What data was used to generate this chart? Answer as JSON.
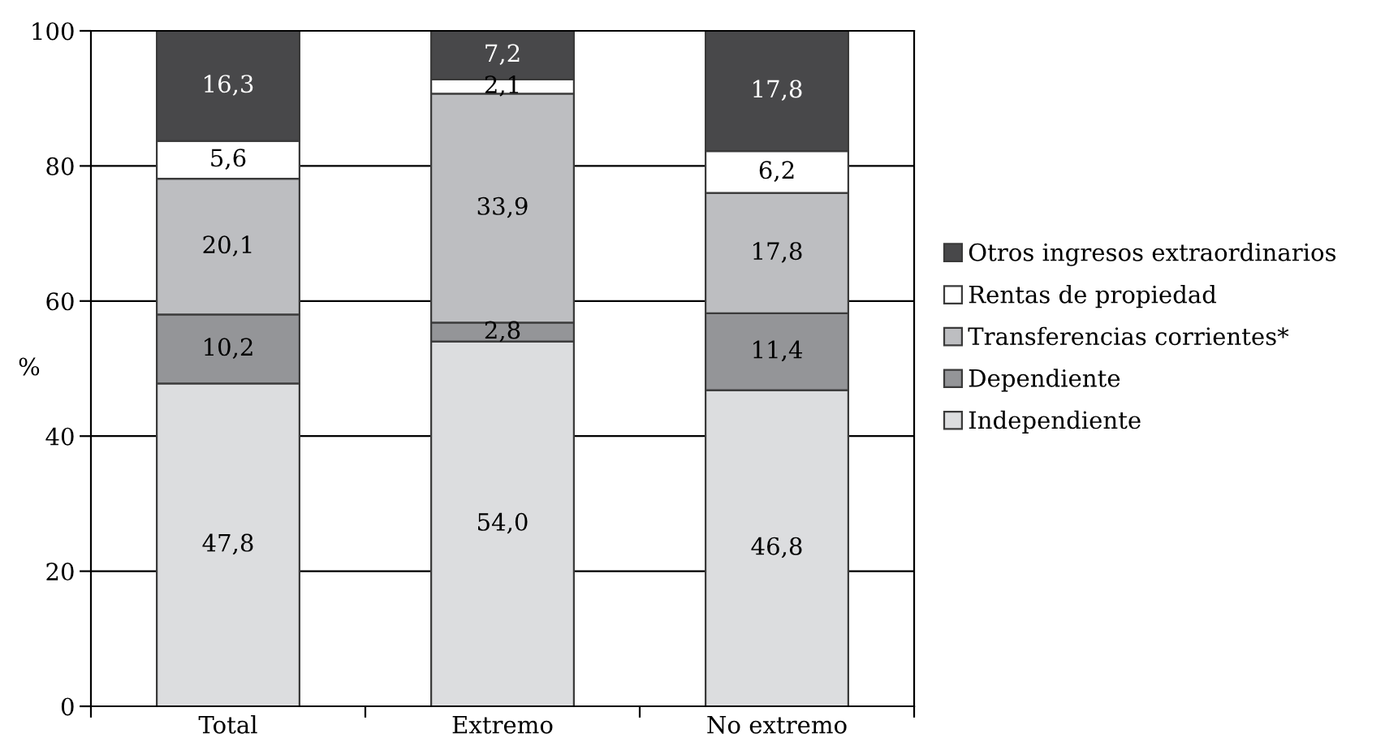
{
  "chart_data": {
    "type": "bar",
    "stacked": true,
    "categories": [
      "Total",
      "Extremo",
      "No extremo"
    ],
    "ylabel": "%",
    "ylim": [
      0,
      100
    ],
    "yticks": [
      0,
      20,
      40,
      60,
      80,
      100
    ],
    "grid": "y",
    "legend": "right",
    "series": [
      {
        "name": "Independiente",
        "color": "#dcdddf",
        "values": [
          47.8,
          54.0,
          46.8
        ],
        "value_labels": [
          "47,8",
          "54,0",
          "46,8"
        ]
      },
      {
        "name": "Dependiente",
        "color": "#949598",
        "values": [
          10.2,
          2.8,
          11.4
        ],
        "value_labels": [
          "10,2",
          "2,8",
          "11,4"
        ]
      },
      {
        "name": "Transferencias corrientes*",
        "color": "#bdbec1",
        "values": [
          20.1,
          33.9,
          17.8
        ],
        "value_labels": [
          "20,1",
          "33,9",
          "17,8"
        ]
      },
      {
        "name": "Rentas de propiedad",
        "color": "#ffffff",
        "values": [
          5.6,
          2.1,
          6.2
        ],
        "value_labels": [
          "5,6",
          "2,1",
          "6,2"
        ]
      },
      {
        "name": "Otros ingresos extraordinarios",
        "color": "#48484a",
        "values": [
          16.3,
          7.2,
          17.8
        ],
        "value_labels": [
          "16,3",
          "7,2",
          "17,8"
        ]
      }
    ]
  }
}
